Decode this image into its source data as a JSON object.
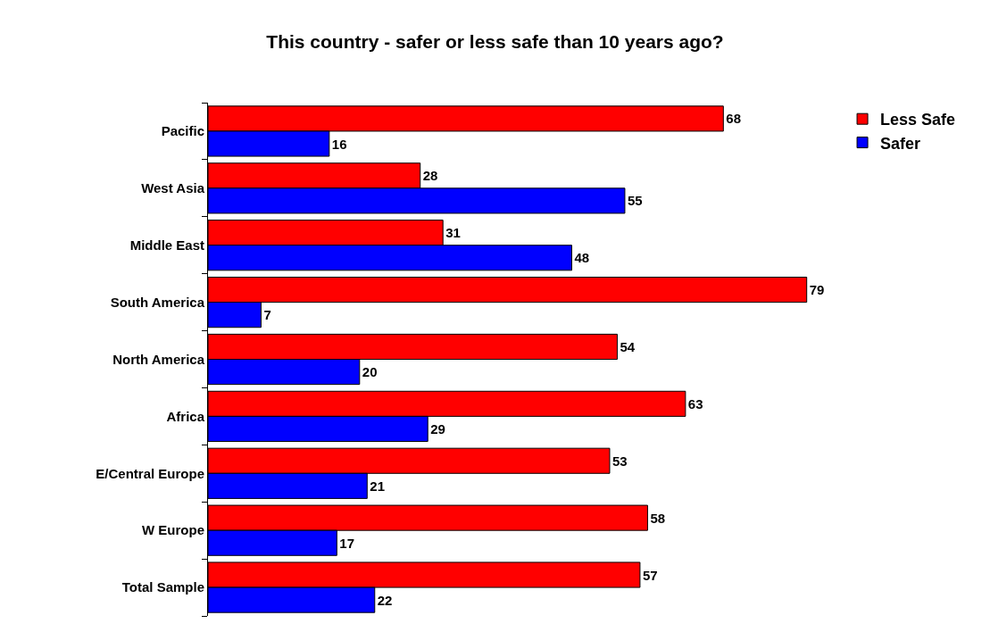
{
  "chart_data": {
    "type": "bar",
    "orientation": "horizontal",
    "title": "This country - safer or less safe than 10 years ago?",
    "categories": [
      "Pacific",
      "West Asia",
      "Middle East",
      "South America",
      "North America",
      "Africa",
      "E/Central Europe",
      "W Europe",
      "Total Sample"
    ],
    "series": [
      {
        "name": "Less Safe",
        "color": "#ff0000",
        "values": [
          68,
          28,
          31,
          79,
          54,
          63,
          53,
          58,
          57
        ]
      },
      {
        "name": "Safer",
        "color": "#0000ff",
        "values": [
          16,
          55,
          48,
          7,
          20,
          29,
          21,
          17,
          22
        ]
      }
    ],
    "data_labels": true,
    "tick_labels": "y",
    "legend": "top right"
  }
}
